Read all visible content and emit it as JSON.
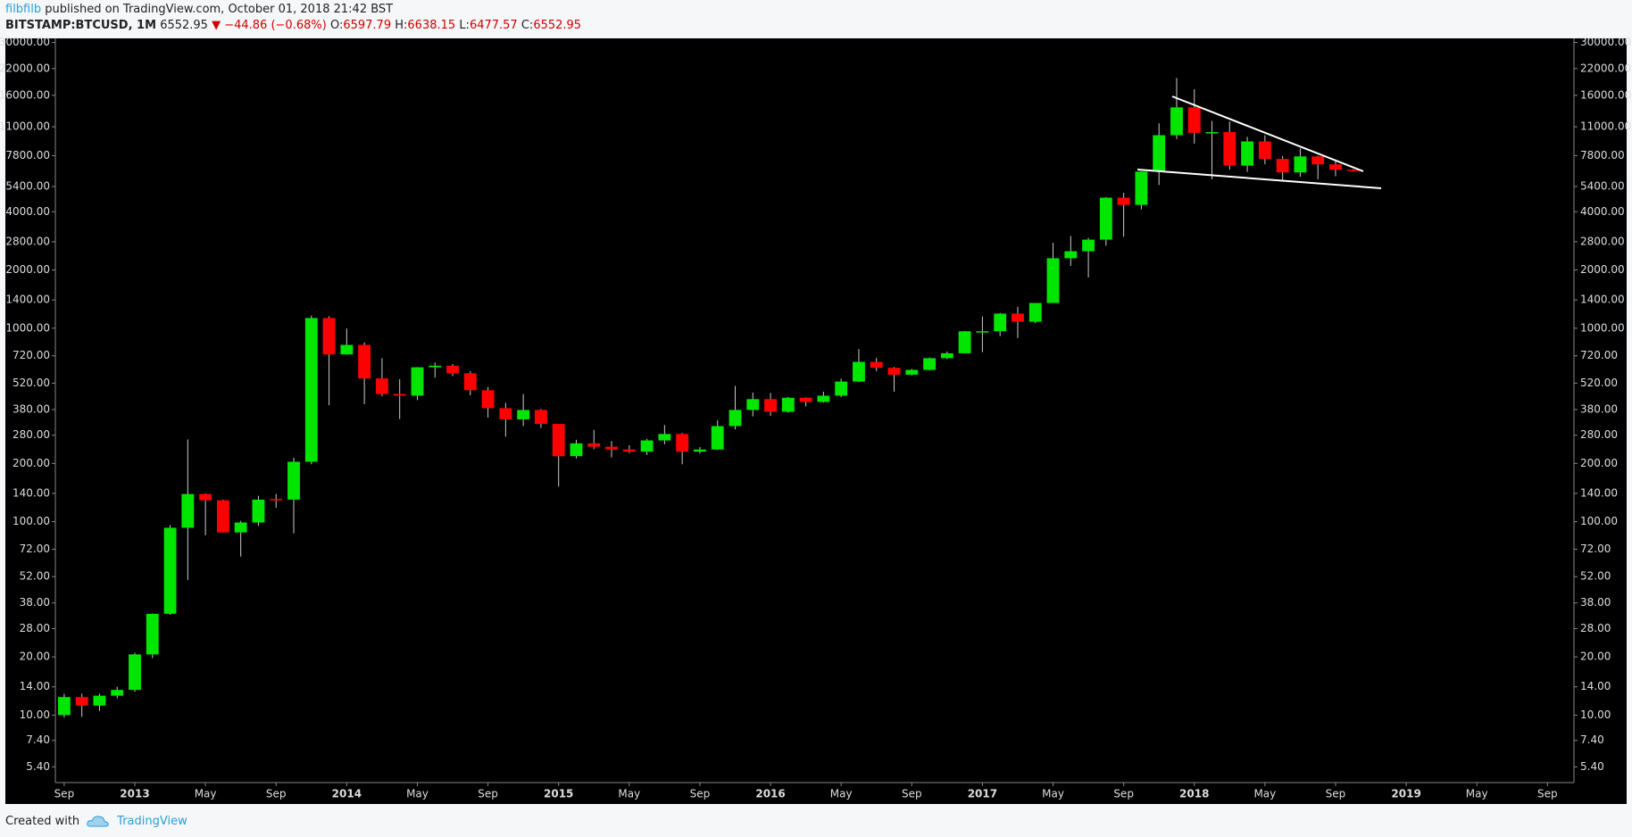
{
  "header": {
    "author": "filbfilb",
    "published": "published on TradingView.com, October 01, 2018 21:42 BST"
  },
  "footer": {
    "created": "Created with",
    "brand": "TradingView"
  },
  "chart_data": {
    "type": "candlestick",
    "info": {
      "symbol": "BITSTAMP:BTCUSD, 1M",
      "last": "6552.95",
      "change": "▼ −44.86 (−0.68%)",
      "o_label": "O:",
      "o": "6597.79",
      "h_label": "H:",
      "h": "6638.15",
      "l_label": "L:",
      "l": "6477.57",
      "c_label": "C:",
      "c": "6552.95"
    },
    "up_color": "#00e600",
    "down_color": "#ff0000",
    "wick_color": "#cccccc",
    "log_scale": true,
    "grid": false,
    "x": [
      "2012-09",
      "2012-10",
      "2012-11",
      "2012-12",
      "2013-01",
      "2013-02",
      "2013-03",
      "2013-04",
      "2013-05",
      "2013-06",
      "2013-07",
      "2013-08",
      "2013-09",
      "2013-10",
      "2013-11",
      "2013-12",
      "2014-01",
      "2014-02",
      "2014-03",
      "2014-04",
      "2014-05",
      "2014-06",
      "2014-07",
      "2014-08",
      "2014-09",
      "2014-10",
      "2014-11",
      "2014-12",
      "2015-01",
      "2015-02",
      "2015-03",
      "2015-04",
      "2015-05",
      "2015-06",
      "2015-07",
      "2015-08",
      "2015-09",
      "2015-10",
      "2015-11",
      "2015-12",
      "2016-01",
      "2016-02",
      "2016-03",
      "2016-04",
      "2016-05",
      "2016-06",
      "2016-07",
      "2016-08",
      "2016-09",
      "2016-10",
      "2016-11",
      "2016-12",
      "2017-01",
      "2017-02",
      "2017-03",
      "2017-04",
      "2017-05",
      "2017-06",
      "2017-07",
      "2017-08",
      "2017-09",
      "2017-10",
      "2017-11",
      "2017-12",
      "2018-01",
      "2018-02",
      "2018-03",
      "2018-04",
      "2018-05",
      "2018-06",
      "2018-07",
      "2018-08",
      "2018-09",
      "2018-10"
    ],
    "open": [
      10.0,
      12.4,
      11.2,
      12.6,
      13.5,
      20.6,
      33.4,
      93,
      139,
      129,
      88,
      99,
      131,
      130,
      204,
      1129,
      732,
      820,
      550,
      457,
      448,
      628,
      640,
      585,
      478,
      386,
      338,
      378,
      320,
      218,
      254,
      244,
      236,
      230,
      263,
      284,
      230,
      236,
      312,
      378,
      430,
      370,
      437,
      416,
      448,
      530,
      670,
      624,
      575,
      609,
      700,
      742,
      964,
      965,
      1190,
      1080,
      1350,
      2300,
      2500,
      2870,
      4730,
      4340,
      6450,
      9950,
      13860,
      10230,
      10320,
      6930,
      9240,
      7500,
      6390,
      7730,
      7030,
      6597.79
    ],
    "high": [
      12.9,
      12.9,
      12.9,
      14.0,
      21.0,
      33.5,
      96,
      266,
      140,
      130,
      101,
      136,
      139,
      214,
      1163,
      1153,
      995,
      845,
      700,
      545,
      630,
      665,
      653,
      599,
      497,
      411,
      457,
      382,
      320,
      265,
      298,
      261,
      248,
      268,
      316,
      287,
      243,
      334,
      503,
      465,
      463,
      441,
      439,
      470,
      549,
      780,
      702,
      630,
      616,
      706,
      758,
      968,
      1150,
      1200,
      1290,
      1350,
      2760,
      2999,
      2929,
      4760,
      5010,
      6470,
      11460,
      19666,
      17180,
      11790,
      11710,
      9760,
      9950,
      7770,
      8500,
      7790,
      7430,
      6638.15
    ],
    "low": [
      9.7,
      9.8,
      10.5,
      12.2,
      13.2,
      19.7,
      33,
      50,
      85,
      88,
      66,
      95,
      118,
      87,
      198,
      400,
      730,
      405,
      445,
      339,
      425,
      555,
      566,
      450,
      345,
      275,
      312,
      305,
      152,
      212,
      237,
      215,
      226,
      221,
      251,
      198,
      225,
      235,
      300,
      350,
      352,
      365,
      394,
      412,
      440,
      526,
      600,
      470,
      570,
      604,
      692,
      742,
      752,
      910,
      890,
      1060,
      1350,
      2100,
      1830,
      2670,
      2970,
      4110,
      5500,
      9500,
      9000,
      5880,
      6600,
      6430,
      7040,
      5750,
      6070,
      5880,
      6100,
      6477.57
    ],
    "close": [
      12.4,
      11.2,
      12.6,
      13.5,
      20.6,
      33.4,
      93,
      139,
      129,
      88,
      99,
      130,
      130,
      204,
      1129,
      732,
      820,
      550,
      457,
      448,
      628,
      640,
      585,
      478,
      386,
      338,
      378,
      320,
      218,
      254,
      244,
      236,
      230,
      263,
      284,
      230,
      236,
      312,
      378,
      430,
      370,
      437,
      416,
      448,
      530,
      670,
      624,
      575,
      609,
      700,
      742,
      964,
      965,
      1190,
      1080,
      1350,
      2300,
      2500,
      2870,
      4730,
      4340,
      6450,
      9950,
      13860,
      10230,
      10320,
      6930,
      9240,
      7500,
      6390,
      7730,
      7030,
      6600,
      6552.95
    ],
    "xlim": [
      "2012-09",
      "2019-10"
    ],
    "xticks": [
      {
        "value": "2012-09",
        "label": "Sep"
      },
      {
        "value": "2013-01",
        "label": "2013"
      },
      {
        "value": "2013-05",
        "label": "May"
      },
      {
        "value": "2013-09",
        "label": "Sep"
      },
      {
        "value": "2014-01",
        "label": "2014"
      },
      {
        "value": "2014-05",
        "label": "May"
      },
      {
        "value": "2014-09",
        "label": "Sep"
      },
      {
        "value": "2015-01",
        "label": "2015"
      },
      {
        "value": "2015-05",
        "label": "May"
      },
      {
        "value": "2015-09",
        "label": "Sep"
      },
      {
        "value": "2016-01",
        "label": "2016"
      },
      {
        "value": "2016-05",
        "label": "May"
      },
      {
        "value": "2016-09",
        "label": "Sep"
      },
      {
        "value": "2017-01",
        "label": "2017"
      },
      {
        "value": "2017-05",
        "label": "May"
      },
      {
        "value": "2017-09",
        "label": "Sep"
      },
      {
        "value": "2018-01",
        "label": "2018"
      },
      {
        "value": "2018-05",
        "label": "May"
      },
      {
        "value": "2018-09",
        "label": "Sep"
      },
      {
        "value": "2019-01",
        "label": "2019"
      },
      {
        "value": "2019-05",
        "label": "May"
      },
      {
        "value": "2019-09",
        "label": "Sep"
      }
    ],
    "ylim": [
      4.48,
      31500
    ],
    "yticks": [
      {
        "value": 5.4,
        "label": "5.40"
      },
      {
        "value": 7.4,
        "label": "7.40"
      },
      {
        "value": 10,
        "label": "10.00"
      },
      {
        "value": 14,
        "label": "14.00"
      },
      {
        "value": 20,
        "label": "20.00"
      },
      {
        "value": 28,
        "label": "28.00"
      },
      {
        "value": 38,
        "label": "38.00"
      },
      {
        "value": 52,
        "label": "52.00"
      },
      {
        "value": 72,
        "label": "72.00"
      },
      {
        "value": 100,
        "label": "100.00"
      },
      {
        "value": 140,
        "label": "140.00"
      },
      {
        "value": 200,
        "label": "200.00"
      },
      {
        "value": 280,
        "label": "280.00"
      },
      {
        "value": 380,
        "label": "380.00"
      },
      {
        "value": 520,
        "label": "520.00"
      },
      {
        "value": 720,
        "label": "720.00"
      },
      {
        "value": 1000,
        "label": "1000.00"
      },
      {
        "value": 1400,
        "label": "1400.00"
      },
      {
        "value": 2000,
        "label": "2000.00"
      },
      {
        "value": 2800,
        "label": "2800.00"
      },
      {
        "value": 4000,
        "label": "4000.00"
      },
      {
        "value": 5400,
        "label": "5400.00"
      },
      {
        "value": 7800,
        "label": "7800.00"
      },
      {
        "value": 11000,
        "label": "11000.00"
      },
      {
        "value": 16000,
        "label": "16000.00"
      },
      {
        "value": 22000,
        "label": "22000.00"
      },
      {
        "value": 30000,
        "label": "30000.00"
      }
    ]
  }
}
